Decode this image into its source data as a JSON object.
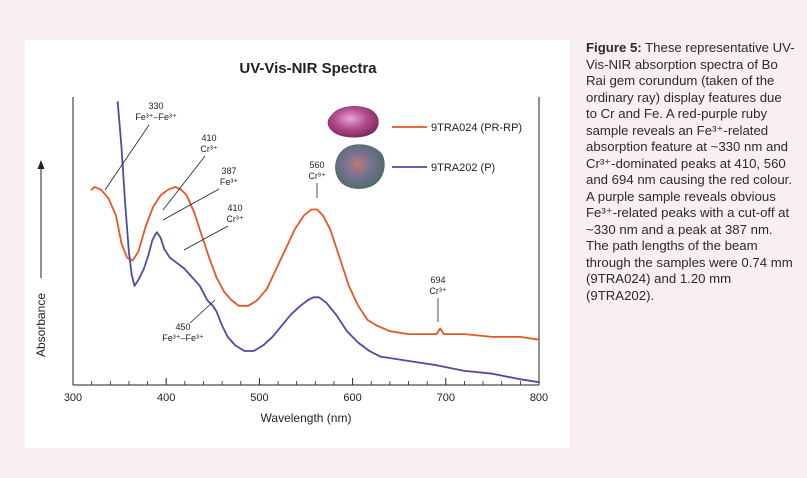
{
  "chart_data": {
    "type": "line",
    "title": "UV-Vis-NIR Spectra",
    "xlabel": "Wavelength (nm)",
    "ylabel": "Absorbance",
    "xlim": [
      300,
      800
    ],
    "ylim": [
      0,
      1
    ],
    "x_ticks": [
      "300",
      "400",
      "500",
      "600",
      "700",
      "800"
    ],
    "legend_position": "top-right",
    "series": [
      {
        "name": "9TRA024 (PR-RP)",
        "color": "#ea5526",
        "points": [
          [
            320,
            0.69
          ],
          [
            323,
            0.7
          ],
          [
            330,
            0.69
          ],
          [
            338,
            0.66
          ],
          [
            346,
            0.6
          ],
          [
            352,
            0.5
          ],
          [
            358,
            0.45
          ],
          [
            364,
            0.44
          ],
          [
            370,
            0.47
          ],
          [
            378,
            0.56
          ],
          [
            386,
            0.63
          ],
          [
            394,
            0.67
          ],
          [
            402,
            0.69
          ],
          [
            410,
            0.7
          ],
          [
            416,
            0.69
          ],
          [
            422,
            0.67
          ],
          [
            430,
            0.61
          ],
          [
            438,
            0.53
          ],
          [
            446,
            0.45
          ],
          [
            454,
            0.38
          ],
          [
            462,
            0.33
          ],
          [
            470,
            0.3
          ],
          [
            478,
            0.28
          ],
          [
            488,
            0.28
          ],
          [
            498,
            0.3
          ],
          [
            508,
            0.34
          ],
          [
            518,
            0.41
          ],
          [
            528,
            0.48
          ],
          [
            538,
            0.55
          ],
          [
            548,
            0.6
          ],
          [
            556,
            0.62
          ],
          [
            562,
            0.62
          ],
          [
            568,
            0.6
          ],
          [
            576,
            0.55
          ],
          [
            586,
            0.45
          ],
          [
            596,
            0.35
          ],
          [
            606,
            0.28
          ],
          [
            616,
            0.23
          ],
          [
            626,
            0.21
          ],
          [
            640,
            0.19
          ],
          [
            660,
            0.18
          ],
          [
            680,
            0.18
          ],
          [
            690,
            0.18
          ],
          [
            694,
            0.2
          ],
          [
            698,
            0.18
          ],
          [
            720,
            0.18
          ],
          [
            750,
            0.17
          ],
          [
            780,
            0.17
          ],
          [
            800,
            0.16
          ]
        ]
      },
      {
        "name": "9TRA202 (P)",
        "color": "#4b4da1",
        "points": [
          [
            348,
            1.0
          ],
          [
            352,
            0.84
          ],
          [
            356,
            0.64
          ],
          [
            360,
            0.47
          ],
          [
            363,
            0.39
          ],
          [
            366,
            0.35
          ],
          [
            370,
            0.37
          ],
          [
            376,
            0.41
          ],
          [
            381,
            0.46
          ],
          [
            385,
            0.51
          ],
          [
            388,
            0.53
          ],
          [
            390,
            0.54
          ],
          [
            394,
            0.52
          ],
          [
            398,
            0.48
          ],
          [
            404,
            0.45
          ],
          [
            412,
            0.43
          ],
          [
            420,
            0.41
          ],
          [
            428,
            0.38
          ],
          [
            436,
            0.35
          ],
          [
            444,
            0.3
          ],
          [
            450,
            0.28
          ],
          [
            454,
            0.26
          ],
          [
            460,
            0.21
          ],
          [
            466,
            0.17
          ],
          [
            474,
            0.14
          ],
          [
            484,
            0.12
          ],
          [
            494,
            0.12
          ],
          [
            504,
            0.14
          ],
          [
            514,
            0.17
          ],
          [
            524,
            0.21
          ],
          [
            534,
            0.25
          ],
          [
            544,
            0.28
          ],
          [
            552,
            0.3
          ],
          [
            558,
            0.31
          ],
          [
            564,
            0.31
          ],
          [
            572,
            0.29
          ],
          [
            582,
            0.25
          ],
          [
            594,
            0.19
          ],
          [
            606,
            0.15
          ],
          [
            618,
            0.12
          ],
          [
            630,
            0.1
          ],
          [
            650,
            0.09
          ],
          [
            670,
            0.08
          ],
          [
            690,
            0.07
          ],
          [
            720,
            0.05
          ],
          [
            750,
            0.04
          ],
          [
            780,
            0.02
          ],
          [
            800,
            0.01
          ]
        ]
      }
    ],
    "annotations": [
      {
        "wavelength_label": "330",
        "species": "Fe³⁺–Fe³⁺"
      },
      {
        "wavelength_label": "410",
        "species": "Cr³⁺"
      },
      {
        "wavelength_label": "387",
        "species": "Fe³⁺"
      },
      {
        "wavelength_label": "410",
        "species": "Cr³⁺"
      },
      {
        "wavelength_label": "560",
        "species": "Cr³⁺"
      },
      {
        "wavelength_label": "694",
        "species": "Cr³⁺"
      },
      {
        "wavelength_label": "450",
        "species": "Fe³⁺–Fe³⁺"
      }
    ]
  },
  "caption": {
    "label": "Figure 5:",
    "text": " These representative UV-Vis-NIR absorption spectra of Bo Rai gem corundum (taken of the ordinary ray) display features due to Cr and Fe. A red-purple ruby sample reveals an Fe³⁺-related absorption feature at ~330 nm and Cr³⁺-dominated peaks at 410, 560 and 694 nm causing the red colour. A purple sample reveals obvious Fe³⁺-related peaks with a cut-off at ~330 nm and a peak at 387 nm. The path lengths of the beam through the samples were 0.74 mm (9TRA024) and 1.20 mm (9TRA202)."
  },
  "colors": {
    "page_background": "#f9eef1",
    "panel_background": "#ffffff",
    "ruby_series": "#ea5526",
    "purple_series": "#4b4da1",
    "ruby_stone": "#b04a8c",
    "purple_stone": "#6f7f8d"
  }
}
